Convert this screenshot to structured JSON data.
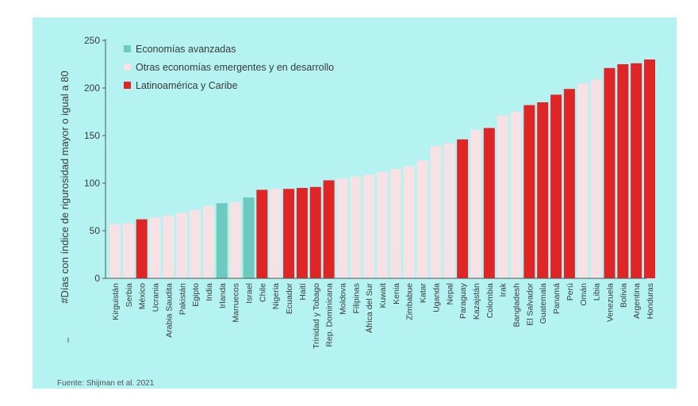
{
  "source": "Fuente: Shijman et al. 2021",
  "colors": {
    "background": "#b4f3f2",
    "advanced": "#6ec9be",
    "other": "#f6e2e4",
    "latam": "#e02527"
  },
  "chart_data": {
    "type": "bar",
    "title": "",
    "xlabel": "",
    "ylabel": "#Días con índice de rigurosidad mayor o igual a 80",
    "ylim": [
      0,
      250
    ],
    "yticks": [
      0,
      50,
      100,
      150,
      200,
      250
    ],
    "grid": false,
    "legend_position": "top-left",
    "legend": [
      {
        "key": "advanced",
        "label": "Economías avanzadas"
      },
      {
        "key": "other",
        "label": "Otras economías emergentes y en desarrollo"
      },
      {
        "key": "latam",
        "label": "Latinoamérica y Caribe"
      }
    ],
    "categories": [
      "Kirguistán",
      "Serbia",
      "México",
      "Ucrania",
      "Arabia Saudita",
      "Pakistán",
      "Egipto",
      "India",
      "Irlanda",
      "Marruecos",
      "Israel",
      "Chile",
      "Nigeria",
      "Ecuador",
      "Haití",
      "Trinidad y Tobago",
      "Rep. Dominicana",
      "Moldova",
      "Filipinas",
      "África del Sur",
      "Kuwait",
      "Kenia",
      "Zimbabue",
      "Katar",
      "Uganda",
      "Nepal",
      "Paraguay",
      "Kazajstán",
      "Colombia",
      "Irak",
      "Bangladesh",
      "El Salvador",
      "Guatemala",
      "Panamá",
      "Perú",
      "Omán",
      "Libia",
      "Venezuela",
      "Bolivia",
      "Argentina",
      "Honduras"
    ],
    "values": [
      57,
      58,
      62,
      64,
      66,
      69,
      72,
      76,
      79,
      80,
      85,
      93,
      94,
      94,
      95,
      96,
      103,
      105,
      107,
      109,
      112,
      115,
      118,
      124,
      139,
      142,
      146,
      156,
      158,
      171,
      175,
      182,
      185,
      193,
      199,
      205,
      209,
      221,
      225,
      226,
      230
    ],
    "groups": [
      "other",
      "other",
      "latam",
      "other",
      "other",
      "other",
      "other",
      "other",
      "advanced",
      "other",
      "advanced",
      "latam",
      "other",
      "latam",
      "latam",
      "latam",
      "latam",
      "other",
      "other",
      "other",
      "other",
      "other",
      "other",
      "other",
      "other",
      "other",
      "latam",
      "other",
      "latam",
      "other",
      "other",
      "latam",
      "latam",
      "latam",
      "latam",
      "other",
      "other",
      "latam",
      "latam",
      "latam",
      "latam"
    ]
  }
}
